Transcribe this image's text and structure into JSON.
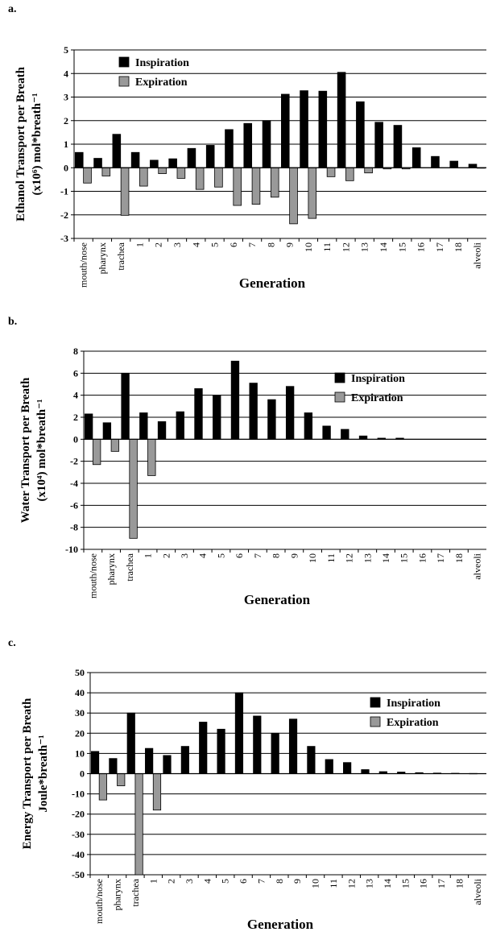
{
  "chart_data": [
    {
      "panel": "a.",
      "type": "bar",
      "ylabel_line1": "Ethanol Transport per Breath",
      "ylabel_line2": "(x10⁶) mol*breath⁻¹",
      "xlabel": "Generation",
      "ylim": [
        -3,
        5
      ],
      "yticks": [
        -3,
        -2,
        -1,
        0,
        1,
        2,
        3,
        4,
        5
      ],
      "grid": true,
      "legend_position": "top-left",
      "categories": [
        "mouth/nose",
        "pharynx",
        "trachea",
        "1",
        "2",
        "3",
        "4",
        "5",
        "6",
        "7",
        "8",
        "9",
        "10",
        "11",
        "12",
        "13",
        "14",
        "15",
        "16",
        "17",
        "18",
        "alveoli"
      ],
      "series": [
        {
          "name": "Inspiration",
          "color": "#000000",
          "values": [
            0.65,
            0.4,
            1.42,
            0.65,
            0.32,
            0.38,
            0.82,
            0.95,
            1.62,
            1.88,
            2.0,
            3.12,
            3.27,
            3.25,
            4.05,
            2.8,
            1.93,
            1.8,
            0.85,
            0.48,
            0.28,
            0.15
          ]
        },
        {
          "name": "Expiration",
          "color": "#999999",
          "values": [
            -0.65,
            -0.35,
            -2.02,
            -0.78,
            -0.25,
            -0.45,
            -0.92,
            -0.82,
            -1.6,
            -1.55,
            -1.25,
            -2.38,
            -2.15,
            -0.38,
            -0.55,
            -0.22,
            -0.05,
            -0.05,
            0,
            0,
            0,
            -0.02
          ]
        }
      ]
    },
    {
      "panel": "b.",
      "type": "bar",
      "ylabel_line1": "Water Transport per Breath",
      "ylabel_line2": "(x10⁴) mol*breath⁻¹",
      "xlabel": "Generation",
      "ylim": [
        -10,
        8
      ],
      "yticks": [
        -10,
        -8,
        -6,
        -4,
        -2,
        0,
        2,
        4,
        6,
        8
      ],
      "grid": true,
      "legend_position": "top-right",
      "categories": [
        "mouth/nose",
        "pharynx",
        "trachea",
        "1",
        "2",
        "3",
        "4",
        "5",
        "6",
        "7",
        "8",
        "9",
        "10",
        "11",
        "12",
        "13",
        "14",
        "15",
        "16",
        "17",
        "18",
        "alveoli"
      ],
      "series": [
        {
          "name": "Inspiration",
          "color": "#000000",
          "values": [
            2.3,
            1.5,
            6.0,
            2.4,
            1.6,
            2.5,
            4.6,
            4.0,
            7.1,
            5.1,
            3.6,
            4.8,
            2.4,
            1.2,
            0.9,
            0.3,
            0.1,
            0.1,
            0,
            0,
            0,
            0
          ]
        },
        {
          "name": "Expiration",
          "color": "#999999",
          "values": [
            -2.3,
            -1.1,
            -9.0,
            -3.3,
            0,
            0,
            0,
            0,
            0,
            0,
            0,
            0,
            0,
            0,
            0,
            0,
            0,
            0,
            0,
            0,
            0,
            0
          ]
        }
      ]
    },
    {
      "panel": "c.",
      "type": "bar",
      "ylabel_line1": "Energy Transport per Breath",
      "ylabel_line2": "Joule*breath⁻¹",
      "xlabel": "Generation",
      "ylim": [
        -50,
        50
      ],
      "yticks": [
        -50,
        -40,
        -30,
        -20,
        -10,
        0,
        10,
        20,
        30,
        40,
        50
      ],
      "grid": true,
      "legend_position": "top-right",
      "categories": [
        "mouth/nose",
        "pharynx",
        "trachea",
        "1",
        "2",
        "3",
        "4",
        "5",
        "6",
        "7",
        "8",
        "9",
        "10",
        "11",
        "12",
        "13",
        "14",
        "15",
        "16",
        "17",
        "18",
        "alveoli"
      ],
      "series": [
        {
          "name": "Inspiration",
          "color": "#000000",
          "values": [
            11,
            7.5,
            30,
            12.5,
            9,
            13.5,
            25.5,
            22,
            40,
            28.5,
            20,
            27,
            13.5,
            7,
            5.5,
            2,
            1,
            0.8,
            0.5,
            0.3,
            0.2,
            0.1
          ]
        },
        {
          "name": "Expiration",
          "color": "#999999",
          "values": [
            -13,
            -6,
            -50,
            -18,
            0,
            0,
            0,
            0,
            0,
            0,
            0,
            0,
            0,
            0,
            0,
            0,
            0,
            0,
            0,
            0,
            0,
            0
          ]
        }
      ]
    }
  ]
}
